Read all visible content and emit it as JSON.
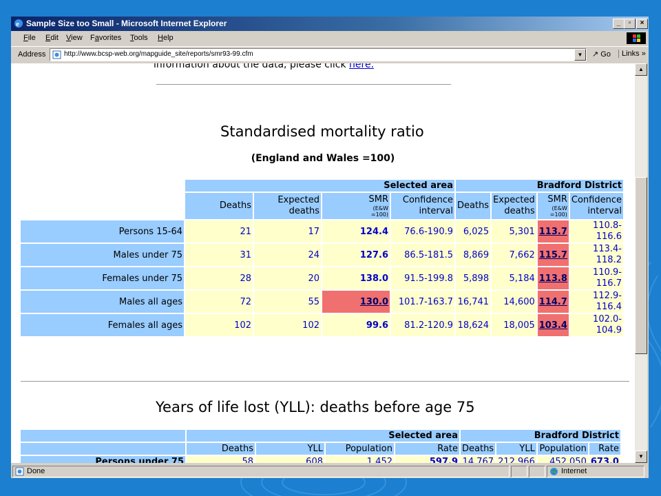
{
  "window": {
    "title": "Sample Size too Small - Microsoft Internet Explorer",
    "controls": {
      "minimize": "_",
      "maximize": "▫",
      "close": "×"
    }
  },
  "menu": [
    {
      "pre": "",
      "acc": "F",
      "post": "ile"
    },
    {
      "pre": "",
      "acc": "E",
      "post": "dit"
    },
    {
      "pre": "",
      "acc": "V",
      "post": "iew"
    },
    {
      "pre": "F",
      "acc": "a",
      "post": "vorites"
    },
    {
      "pre": "",
      "acc": "T",
      "post": "ools"
    },
    {
      "pre": "",
      "acc": "H",
      "post": "elp"
    }
  ],
  "address": {
    "label": "Address",
    "url": "http://www.bcsp-web.org/mapguide_site/reports/smr93-99.cfm",
    "go_label": "Go",
    "links_label": "Links »"
  },
  "page": {
    "intro_text": "information about the data, please click ",
    "intro_link": "here.",
    "smr": {
      "title": "Standardised mortality ratio",
      "subtitle": "(England and Wales =100)",
      "group_selected": "Selected area",
      "group_district": "Bradford District",
      "col_deaths": "Deaths",
      "col_expected_1": "Expected",
      "col_expected_2": "deaths",
      "col_smr": "SMR",
      "col_smr_small_1": "(E&W",
      "col_smr_small_2": "=100)",
      "col_ci_1": "Confidence",
      "col_ci_2": "interval",
      "rows": [
        {
          "label": "Persons 15-64",
          "s_deaths": "21",
          "s_expected": "17",
          "s_smr": "124.4",
          "s_ci": "76.6-190.9",
          "d_deaths": "6,025",
          "d_expected": "5,301",
          "d_smr": "113.7",
          "d_ci_1": "110.8-",
          "d_ci_2": "116.6"
        },
        {
          "label": "Males under 75",
          "s_deaths": "31",
          "s_expected": "24",
          "s_smr": "127.6",
          "s_ci": "86.5-181.5",
          "d_deaths": "8,869",
          "d_expected": "7,662",
          "d_smr": "115.7",
          "d_ci_1": "113.4-",
          "d_ci_2": "118.2"
        },
        {
          "label": "Females under 75",
          "s_deaths": "28",
          "s_expected": "20",
          "s_smr": "138.0",
          "s_ci": "91.5-199.8",
          "d_deaths": "5,898",
          "d_expected": "5,184",
          "d_smr": "113.8",
          "d_ci_1": "110.9-",
          "d_ci_2": "116.7"
        },
        {
          "label": "Males all ages",
          "s_deaths": "72",
          "s_expected": "55",
          "s_smr": "130.0",
          "s_ci": "101.7-163.7",
          "d_deaths": "16,741",
          "d_expected": "14,600",
          "d_smr": "114.7",
          "d_ci_1": "112.9-",
          "d_ci_2": "116.4"
        },
        {
          "label": "Females all ages",
          "s_deaths": "102",
          "s_expected": "102",
          "s_smr": "99.6",
          "s_ci": "81.2-120.9",
          "d_deaths": "18,624",
          "d_expected": "18,005",
          "d_smr": "103.4",
          "d_ci_1": "102.0-",
          "d_ci_2": "104.9"
        }
      ]
    },
    "yll": {
      "title": "Years of life lost (YLL): deaths before age 75",
      "group_selected": "Selected area",
      "group_district": "Bradford District",
      "cols": [
        "Deaths",
        "YLL",
        "Population",
        "Rate",
        "Deaths",
        "YLL",
        "Population",
        "Rate"
      ],
      "row": {
        "label": "Persons under 75",
        "s_deaths": "58",
        "s_yll": "608",
        "s_pop": "1,452",
        "s_rate": "597.9",
        "d_deaths": "14,767",
        "d_yll": "212,966",
        "d_pop": "452,050",
        "d_rate": "673.0"
      }
    }
  },
  "status": {
    "left": "Done",
    "zone": "Internet"
  },
  "colors": {
    "desktop": "#1c7fd0",
    "header_blue": "#99ccff",
    "cell_yellow": "#ffffcc",
    "highlight_red": "#f07070",
    "value_blue": "#0000cc"
  }
}
